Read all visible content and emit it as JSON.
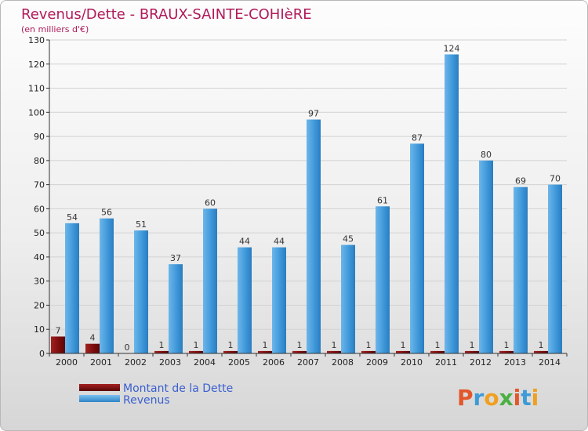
{
  "header": {
    "title": "Revenus/Dette - BRAUX-SAINTE-COHIèRE",
    "subtitle": "(en milliers d'€)"
  },
  "legend": {
    "debt_label": "Montant de la Dette",
    "revenue_label": "Revenus"
  },
  "logo": {
    "text": "Proxiti"
  },
  "colors": {
    "debt": "#7a0c0c",
    "revenue": "#3d96d8",
    "title": "#b01a5a"
  },
  "chart_data": {
    "type": "bar",
    "title": "Revenus/Dette - BRAUX-SAINTE-COHIèRE",
    "ylabel": "(en milliers d'€)",
    "xlabel": "",
    "ylim": [
      0,
      130
    ],
    "yticks": [
      0,
      10,
      20,
      30,
      40,
      50,
      60,
      70,
      80,
      90,
      100,
      110,
      120,
      130
    ],
    "grid": true,
    "legend_position": "bottom-left",
    "categories": [
      "2000",
      "2001",
      "2002",
      "2003",
      "2004",
      "2005",
      "2006",
      "2007",
      "2008",
      "2009",
      "2010",
      "2011",
      "2012",
      "2013",
      "2014"
    ],
    "series": [
      {
        "name": "Montant de la Dette",
        "values": [
          7,
          4,
          0,
          1,
          1,
          1,
          1,
          1,
          1,
          1,
          1,
          1,
          1,
          1,
          1
        ]
      },
      {
        "name": "Revenus",
        "values": [
          54,
          56,
          51,
          37,
          60,
          44,
          44,
          97,
          45,
          61,
          87,
          124,
          80,
          69,
          70
        ]
      }
    ]
  }
}
